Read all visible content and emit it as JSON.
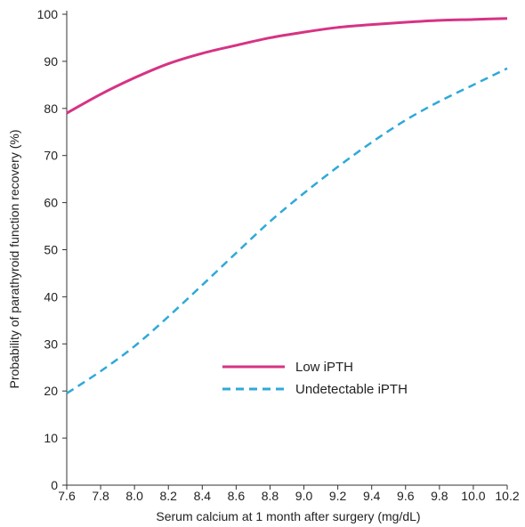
{
  "chart_data": {
    "type": "line",
    "title": "",
    "xlabel": "Serum calcium at 1 month after surgery (mg/dL)",
    "ylabel": "Probability of parathyroid function recovery (%)",
    "xlim": [
      7.6,
      10.2
    ],
    "ylim": [
      0,
      100
    ],
    "xticks": [
      "7.6",
      "7.8",
      "8.0",
      "8.2",
      "8.4",
      "8.6",
      "8.8",
      "9.0",
      "9.2",
      "9.4",
      "9.6",
      "9.8",
      "10.0",
      "10.2"
    ],
    "yticks": [
      "0",
      "10",
      "20",
      "30",
      "40",
      "50",
      "60",
      "70",
      "80",
      "90",
      "100"
    ],
    "grid": false,
    "legend": "center-right",
    "series": [
      {
        "name": "Low iPTH",
        "color": "#d63384",
        "style": "solid",
        "x": [
          7.6,
          7.8,
          8.0,
          8.2,
          8.4,
          8.6,
          8.8,
          9.0,
          9.2,
          9.4,
          9.6,
          9.8,
          10.0,
          10.2
        ],
        "y": [
          79,
          83,
          86.5,
          89.5,
          91.7,
          93.4,
          95.0,
          96.2,
          97.2,
          97.8,
          98.3,
          98.7,
          98.9,
          99.1
        ]
      },
      {
        "name": "Undetectable iPTH",
        "color": "#2fa9d9",
        "style": "dashed",
        "x": [
          7.6,
          7.8,
          8.0,
          8.2,
          8.4,
          8.6,
          8.8,
          9.0,
          9.2,
          9.4,
          9.6,
          9.8,
          10.0,
          10.2
        ],
        "y": [
          19.5,
          24.2,
          29.5,
          35.8,
          42.5,
          49.3,
          56.0,
          62.0,
          67.6,
          72.8,
          77.5,
          81.5,
          85.0,
          88.5
        ]
      }
    ]
  }
}
